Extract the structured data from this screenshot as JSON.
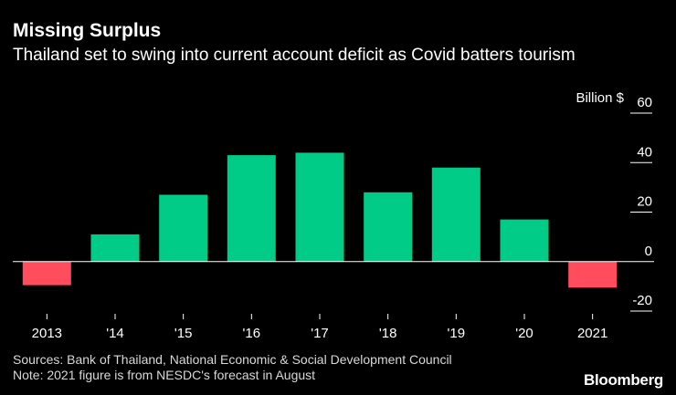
{
  "header": {
    "title": "Missing Surplus",
    "subtitle": "Thailand set to swing into current account deficit as Covid batters tourism"
  },
  "footer": {
    "source": "Sources: Bank of Thailand, National Economic & Social Development Council",
    "note": "Note: 2021 figure is from NESDC's forecast in August",
    "brand": "Bloomberg"
  },
  "colors": {
    "positive": "#00cc88",
    "negative": "#ff4d5e",
    "background": "#000000",
    "text": "#ffffff",
    "axis": "#ffffff"
  },
  "chart_data": {
    "type": "bar",
    "title": "Missing Surplus",
    "subtitle": "Thailand set to swing into current account deficit as Covid batters tourism",
    "unit_label": "Billion $",
    "categories": [
      "2013",
      "'14",
      "'15",
      "'16",
      "'17",
      "'18",
      "'19",
      "'20",
      "2021"
    ],
    "values": [
      -9.5,
      11,
      27,
      43,
      44,
      28,
      38,
      17,
      -10.5
    ],
    "ylim": [
      -20,
      60
    ],
    "yticks": [
      60,
      40,
      20,
      0,
      -20
    ],
    "ytick_labels": [
      "60",
      "40",
      "20",
      "0",
      "-20"
    ],
    "xlabel": "",
    "ylabel": "",
    "grid": false,
    "legend": "none"
  }
}
